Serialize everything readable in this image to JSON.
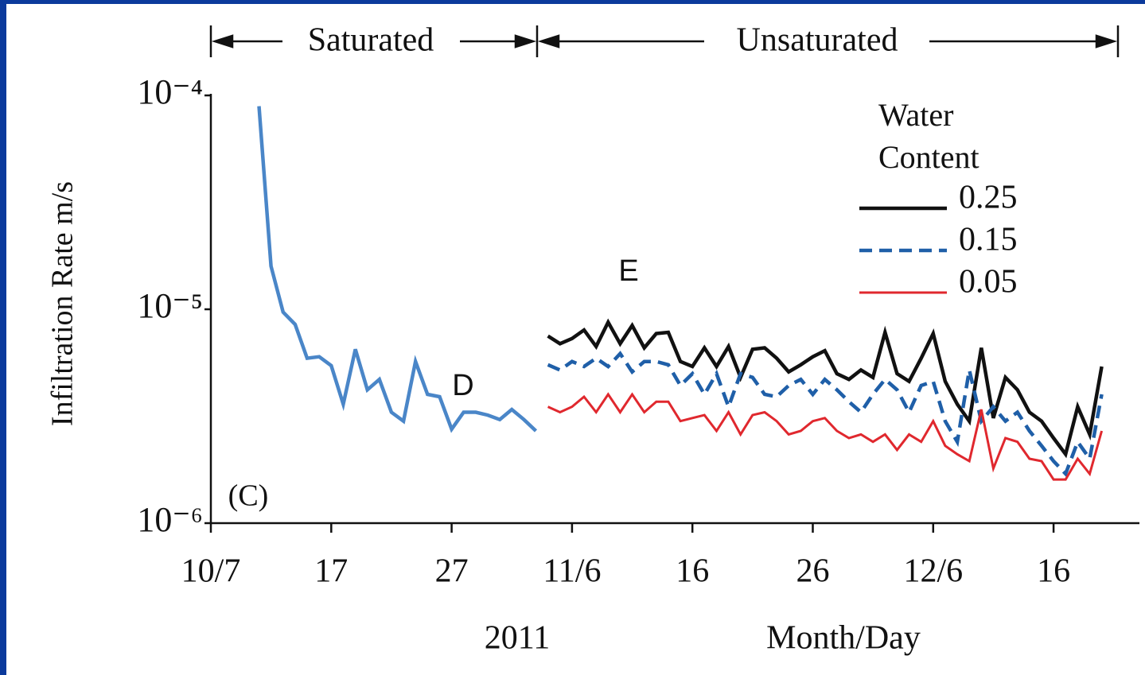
{
  "chart_data": {
    "type": "line",
    "y_label": "Infiltration Rate m/s",
    "x_label": "Month/Day",
    "year": "2011",
    "periods": [
      "Saturated",
      "Unsaturated"
    ],
    "annotations": [
      "D",
      "E",
      "(C)"
    ],
    "legend_title": "Water Content",
    "legend_position": "upper right",
    "ylog": true,
    "ylim": [
      1e-06,
      0.0001
    ],
    "yticks": [
      {
        "value": 0.0001,
        "label": "10⁻⁴"
      },
      {
        "value": 1e-05,
        "label": "10⁻⁵"
      },
      {
        "value": 1e-06,
        "label": "10⁻⁶"
      }
    ],
    "xlim": [
      "2011-10-07",
      "2011-12-23"
    ],
    "xticks": [
      {
        "value": "2011-10-07",
        "label": "10/7"
      },
      {
        "value": "2011-10-17",
        "label": "17"
      },
      {
        "value": "2011-10-27",
        "label": "27"
      },
      {
        "value": "2011-11-06",
        "label": "11/6"
      },
      {
        "value": "2011-11-16",
        "label": "16"
      },
      {
        "value": "2011-11-26",
        "label": "26"
      },
      {
        "value": "2011-12-06",
        "label": "12/6"
      },
      {
        "value": "2011-12-16",
        "label": "16"
      }
    ],
    "series": [
      {
        "color": "#4a86c8",
        "style": "solid",
        "x": [
          "2011-10-11",
          "2011-10-12",
          "2011-10-13",
          "2011-10-14",
          "2011-10-15",
          "2011-10-16",
          "2011-10-17",
          "2011-10-18",
          "2011-10-19",
          "2011-10-20",
          "2011-10-21",
          "2011-10-22",
          "2011-10-23",
          "2011-10-24",
          "2011-10-25",
          "2011-10-26",
          "2011-10-27",
          "2011-10-28",
          "2011-10-29",
          "2011-10-30",
          "2011-10-31",
          "2011-11-01",
          "2011-11-02",
          "2011-11-03"
        ],
        "values": [
          8.9e-05,
          1.59e-05,
          9.7e-06,
          8.5e-06,
          5.9e-06,
          6e-06,
          5.45e-06,
          3.6e-06,
          6.5e-06,
          4.2e-06,
          4.7e-06,
          3.3e-06,
          3e-06,
          5.7e-06,
          4e-06,
          3.9e-06,
          2.75e-06,
          3.3e-06,
          3.3e-06,
          3.2e-06,
          3.05e-06,
          3.4e-06,
          3.05e-06,
          2.7e-06
        ]
      },
      {
        "name": "0.25",
        "color": "#111111",
        "style": "solid",
        "x": [
          "2011-11-04",
          "2011-11-05",
          "2011-11-06",
          "2011-11-07",
          "2011-11-08",
          "2011-11-09",
          "2011-11-10",
          "2011-11-11",
          "2011-11-12",
          "2011-11-13",
          "2011-11-14",
          "2011-11-15",
          "2011-11-16",
          "2011-11-17",
          "2011-11-18",
          "2011-11-19",
          "2011-11-20",
          "2011-11-21",
          "2011-11-22",
          "2011-11-23",
          "2011-11-24",
          "2011-11-25",
          "2011-11-26",
          "2011-11-27",
          "2011-11-28",
          "2011-11-29",
          "2011-11-30",
          "2011-12-01",
          "2011-12-02",
          "2011-12-03",
          "2011-12-04",
          "2011-12-05",
          "2011-12-06",
          "2011-12-07",
          "2011-12-08",
          "2011-12-09",
          "2011-12-10",
          "2011-12-11",
          "2011-12-12",
          "2011-12-13",
          "2011-12-14",
          "2011-12-15",
          "2011-12-16",
          "2011-12-17",
          "2011-12-18",
          "2011-12-19",
          "2011-12-20"
        ],
        "values": [
          7.5e-06,
          6.9e-06,
          7.3e-06,
          8e-06,
          6.7e-06,
          8.7e-06,
          6.9e-06,
          8.4e-06,
          6.6e-06,
          7.7e-06,
          7.8e-06,
          5.7e-06,
          5.4e-06,
          6.6e-06,
          5.4e-06,
          6.7e-06,
          4.8e-06,
          6.5e-06,
          6.6e-06,
          5.9e-06,
          5.1e-06,
          5.5e-06,
          6e-06,
          6.4e-06,
          5e-06,
          4.7e-06,
          5.2e-06,
          4.8e-06,
          7.8e-06,
          5e-06,
          4.6e-06,
          5.9e-06,
          7.7e-06,
          4.6e-06,
          3.6e-06,
          3e-06,
          6.6e-06,
          3.1e-06,
          4.8e-06,
          4.2e-06,
          3.3e-06,
          3e-06,
          2.5e-06,
          2.1e-06,
          3.5e-06,
          2.6e-06,
          5.4e-06
        ]
      },
      {
        "name": "0.15",
        "color": "#1f5fa8",
        "style": "dashed",
        "x": [
          "2011-11-04",
          "2011-11-05",
          "2011-11-06",
          "2011-11-07",
          "2011-11-08",
          "2011-11-09",
          "2011-11-10",
          "2011-11-11",
          "2011-11-12",
          "2011-11-13",
          "2011-11-14",
          "2011-11-15",
          "2011-11-16",
          "2011-11-17",
          "2011-11-18",
          "2011-11-19",
          "2011-11-20",
          "2011-11-21",
          "2011-11-22",
          "2011-11-23",
          "2011-11-24",
          "2011-11-25",
          "2011-11-26",
          "2011-11-27",
          "2011-11-28",
          "2011-11-29",
          "2011-11-30",
          "2011-12-01",
          "2011-12-02",
          "2011-12-03",
          "2011-12-04",
          "2011-12-05",
          "2011-12-06",
          "2011-12-07",
          "2011-12-08",
          "2011-12-09",
          "2011-12-10",
          "2011-12-11",
          "2011-12-12",
          "2011-12-13",
          "2011-12-14",
          "2011-12-15",
          "2011-12-16",
          "2011-12-17",
          "2011-12-18",
          "2011-12-19",
          "2011-12-20"
        ],
        "values": [
          5.5e-06,
          5.2e-06,
          5.7e-06,
          5.4e-06,
          5.9e-06,
          5.4e-06,
          6.2e-06,
          5.1e-06,
          5.7e-06,
          5.7e-06,
          5.5e-06,
          4.4e-06,
          5e-06,
          4e-06,
          5e-06,
          3.5e-06,
          5e-06,
          4.8e-06,
          4e-06,
          3.9e-06,
          4.4e-06,
          4.7e-06,
          4e-06,
          4.7e-06,
          4.2e-06,
          3.7e-06,
          3.3e-06,
          4e-06,
          4.7e-06,
          4.2e-06,
          3.3e-06,
          4.4e-06,
          4.6e-06,
          3e-06,
          2.4e-06,
          5.2e-06,
          3e-06,
          3.5e-06,
          3e-06,
          3.3e-06,
          2.7e-06,
          2.3e-06,
          1.95e-06,
          1.7e-06,
          2.4e-06,
          2e-06,
          4e-06
        ]
      },
      {
        "name": "0.05",
        "color": "#e0282e",
        "style": "solid",
        "x": [
          "2011-11-04",
          "2011-11-05",
          "2011-11-06",
          "2011-11-07",
          "2011-11-08",
          "2011-11-09",
          "2011-11-10",
          "2011-11-11",
          "2011-11-12",
          "2011-11-13",
          "2011-11-14",
          "2011-11-15",
          "2011-11-16",
          "2011-11-17",
          "2011-11-18",
          "2011-11-19",
          "2011-11-20",
          "2011-11-21",
          "2011-11-22",
          "2011-11-23",
          "2011-11-24",
          "2011-11-25",
          "2011-11-26",
          "2011-11-27",
          "2011-11-28",
          "2011-11-29",
          "2011-11-30",
          "2011-12-01",
          "2011-12-02",
          "2011-12-03",
          "2011-12-04",
          "2011-12-05",
          "2011-12-06",
          "2011-12-07",
          "2011-12-08",
          "2011-12-09",
          "2011-12-10",
          "2011-12-11",
          "2011-12-12",
          "2011-12-13",
          "2011-12-14",
          "2011-12-15",
          "2011-12-16",
          "2011-12-17",
          "2011-12-18",
          "2011-12-19",
          "2011-12-20"
        ],
        "values": [
          3.5e-06,
          3.3e-06,
          3.5e-06,
          3.9e-06,
          3.3e-06,
          4e-06,
          3.3e-06,
          4e-06,
          3.3e-06,
          3.7e-06,
          3.7e-06,
          3e-06,
          3.1e-06,
          3.2e-06,
          2.7e-06,
          3.3e-06,
          2.6e-06,
          3.2e-06,
          3.3e-06,
          3e-06,
          2.6e-06,
          2.7e-06,
          3e-06,
          3.1e-06,
          2.7e-06,
          2.5e-06,
          2.6e-06,
          2.4e-06,
          2.6e-06,
          2.2e-06,
          2.6e-06,
          2.4e-06,
          3e-06,
          2.3e-06,
          2.1e-06,
          1.95e-06,
          3.4e-06,
          1.8e-06,
          2.5e-06,
          2.4e-06,
          2e-06,
          1.95e-06,
          1.6e-06,
          1.6e-06,
          2e-06,
          1.7e-06,
          2.7e-06
        ]
      }
    ]
  }
}
